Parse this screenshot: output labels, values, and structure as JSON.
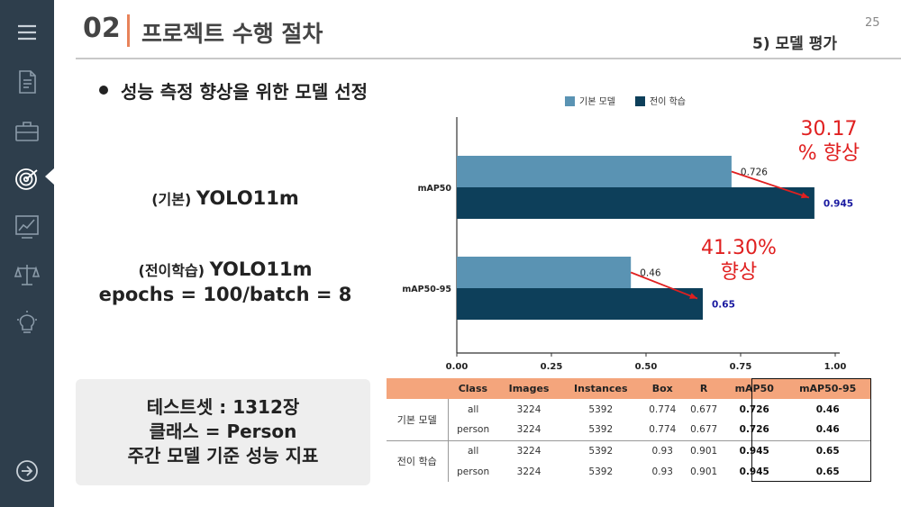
{
  "header": {
    "number": "02",
    "title": "프로젝트 수행 절차",
    "page_number": "25",
    "section": "5)  모델 평가"
  },
  "sidebar": {
    "icons": [
      "menu-icon",
      "document-icon",
      "briefcase-icon",
      "target-icon",
      "chart-icon",
      "scales-icon",
      "lightbulb-icon",
      "arrow-right-circle-icon"
    ],
    "active_index": 3
  },
  "bullet": "성능 측정 향상을 위한 모델 선정",
  "model_base": {
    "prefix": "(기본)",
    "name": "YOLO11m"
  },
  "model_transfer": {
    "prefix": "(전이학습)",
    "name": "YOLO11m",
    "params": "epochs = 100/batch = 8"
  },
  "info_box": {
    "line1": "테스트셋 : 1312장",
    "line2": "클래스 = Person",
    "line3": "주간 모델 기준 성능 지표"
  },
  "annotations": {
    "map50_line1": "30.17",
    "map50_line2": "% 향상",
    "map5095_line1": "41.30%",
    "map5095_line2": "향상"
  },
  "colors": {
    "base": "#5a93b3",
    "transfer": "#0d3f5a",
    "accent": "#e8835a",
    "annotation": "#e02020",
    "sidebar": "#2e3e4c",
    "table_header": "#f4a57c"
  },
  "chart_data": {
    "type": "bar",
    "orientation": "horizontal",
    "categories": [
      "mAP50",
      "mAP50-95"
    ],
    "series": [
      {
        "name": "기본 모델",
        "values": [
          0.726,
          0.46
        ],
        "labels": [
          "0.726",
          "0.46"
        ]
      },
      {
        "name": "전이 학습",
        "values": [
          0.945,
          0.65
        ],
        "labels": [
          "0.945",
          "0.65"
        ]
      }
    ],
    "xlim": [
      0,
      1.0
    ],
    "xticks": [
      "0.00",
      "0.25",
      "0.50",
      "0.75",
      "1.00"
    ],
    "legend": "top",
    "grid": false
  },
  "table": {
    "headers": [
      "",
      "Class",
      "Images",
      "Instances",
      "Box",
      "R",
      "mAP50",
      "mAP50-95"
    ],
    "groups": [
      {
        "name": "기본 모델",
        "rows": [
          [
            "all",
            "3224",
            "5392",
            "0.774",
            "0.677",
            "0.726",
            "0.46"
          ],
          [
            "person",
            "3224",
            "5392",
            "0.774",
            "0.677",
            "0.726",
            "0.46"
          ]
        ]
      },
      {
        "name": "전이 학습",
        "rows": [
          [
            "all",
            "3224",
            "5392",
            "0.93",
            "0.901",
            "0.945",
            "0.65"
          ],
          [
            "person",
            "3224",
            "5392",
            "0.93",
            "0.901",
            "0.945",
            "0.65"
          ]
        ]
      }
    ]
  }
}
